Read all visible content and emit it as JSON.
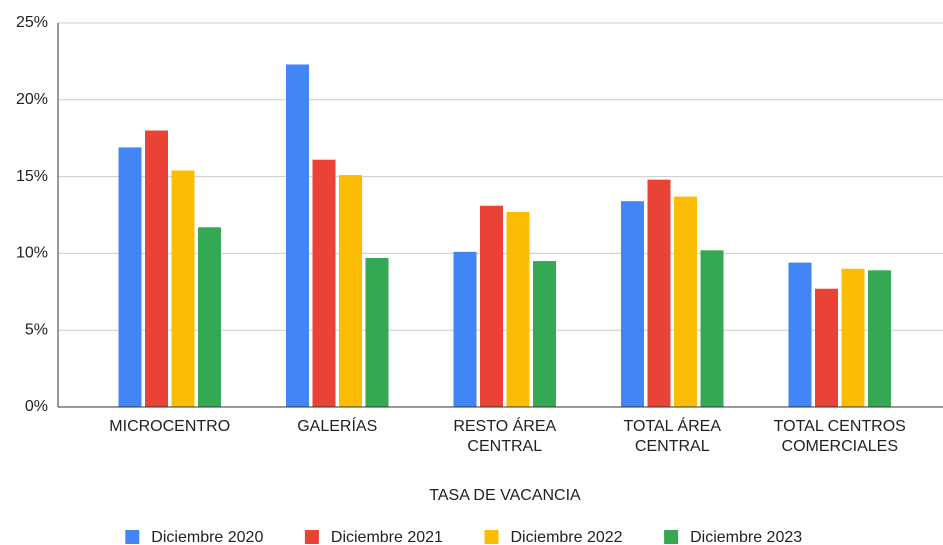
{
  "chart_data": {
    "type": "bar",
    "x_label": "TASA DE VACANCIA",
    "categories": [
      "MICROCENTRO",
      "GALERÍAS",
      "RESTO ÁREA CENTRAL",
      "TOTAL ÁREA CENTRAL",
      "TOTAL CENTROS COMERCIALES"
    ],
    "series": [
      {
        "name": "Diciembre 2020",
        "color": "#4285f4",
        "values": [
          16.9,
          22.3,
          10.1,
          13.4,
          9.4
        ]
      },
      {
        "name": "Diciembre 2021",
        "color": "#ea4335",
        "values": [
          18.0,
          16.1,
          13.1,
          14.8,
          7.7
        ]
      },
      {
        "name": "Diciembre 2022",
        "color": "#fbbc04",
        "values": [
          15.4,
          15.1,
          12.7,
          13.7,
          9.0
        ]
      },
      {
        "name": "Diciembre 2023",
        "color": "#34a853",
        "values": [
          11.7,
          9.7,
          9.5,
          10.2,
          8.9
        ]
      }
    ],
    "ylim": [
      0,
      25
    ],
    "yticks": [
      {
        "value": 0,
        "label": "0%"
      },
      {
        "value": 5,
        "label": "5%"
      },
      {
        "value": 10,
        "label": "10%"
      },
      {
        "value": 15,
        "label": "15%"
      },
      {
        "value": 20,
        "label": "20%"
      },
      {
        "value": 25,
        "label": "25%"
      }
    ],
    "grid": true,
    "legend": "bottom"
  }
}
